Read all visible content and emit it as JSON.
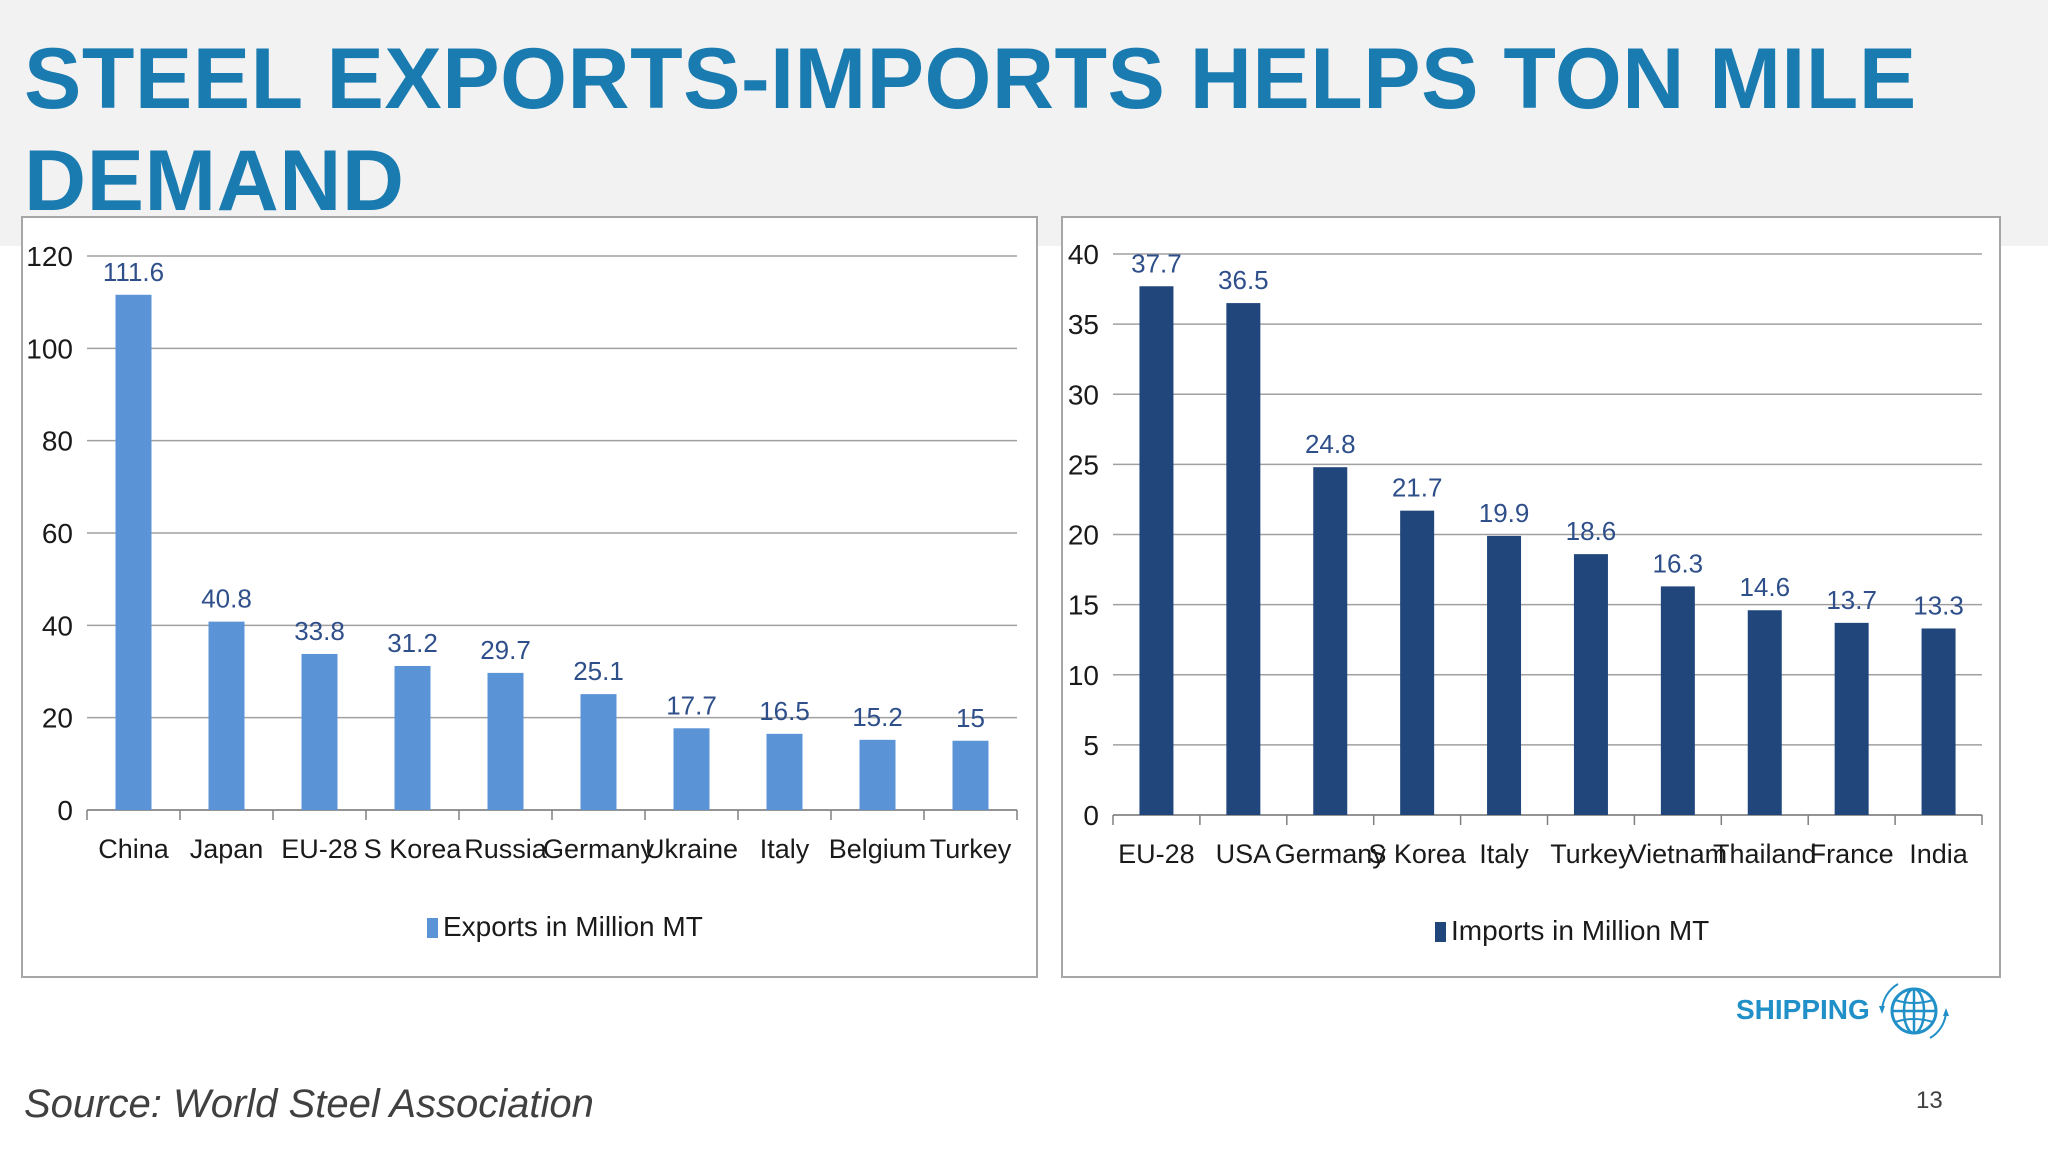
{
  "slide": {
    "title": "STEEL EXPORTS-IMPORTS HELPS TON MILE DEMAND",
    "source": "Source: World Steel Association",
    "page_number": "13",
    "brand": "SHIPPING",
    "brand_icon": "globe-icon"
  },
  "chart_data": [
    {
      "type": "bar",
      "categories": [
        "China",
        "Japan",
        "EU-28",
        "S Korea",
        "Russia",
        "Germany",
        "Ukraine",
        "Italy",
        "Belgium",
        "Turkey"
      ],
      "series": [
        {
          "name": "Exports in Million MT",
          "values": [
            111.6,
            40.8,
            33.8,
            31.2,
            29.7,
            25.1,
            17.7,
            16.5,
            15.2,
            15
          ],
          "color": "#5b93d7"
        }
      ],
      "data_labels": [
        "111.6",
        "40.8",
        "33.8",
        "31.2",
        "29.7",
        "25.1",
        "17.7",
        "16.5",
        "15.2",
        "15"
      ],
      "yticks": [
        "0",
        "20",
        "40",
        "60",
        "80",
        "100",
        "120"
      ],
      "ylim": [
        0,
        120
      ],
      "grid": true,
      "legend": "bottom-center"
    },
    {
      "type": "bar",
      "categories": [
        "EU-28",
        "USA",
        "Germany",
        "S Korea",
        "Italy",
        "Turkey",
        "Vietnam",
        "Thailand",
        "France",
        "India"
      ],
      "series": [
        {
          "name": "Imports in Million MT",
          "values": [
            37.7,
            36.5,
            24.8,
            21.7,
            19.9,
            18.6,
            16.3,
            14.6,
            13.7,
            13.3
          ],
          "color": "#21467c"
        }
      ],
      "data_labels": [
        "37.7",
        "36.5",
        "24.8",
        "21.7",
        "19.9",
        "18.6",
        "16.3",
        "14.6",
        "13.7",
        "13.3"
      ],
      "yticks": [
        "0",
        "5",
        "10",
        "15",
        "20",
        "25",
        "30",
        "35",
        "40"
      ],
      "ylim": [
        0,
        40
      ],
      "grid": true,
      "legend": "bottom-center"
    }
  ]
}
